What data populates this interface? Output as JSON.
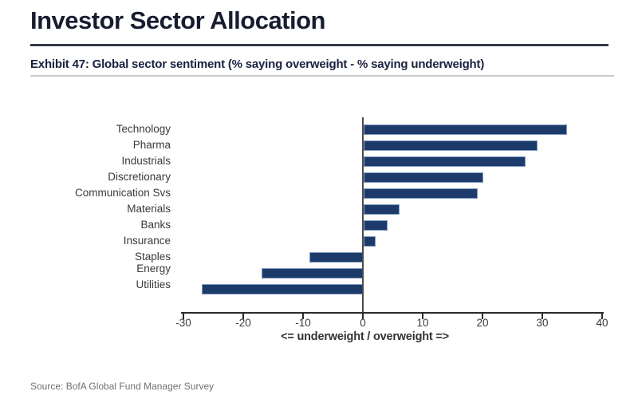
{
  "page": {
    "title": "Investor Sector Allocation",
    "exhibit_heading": "Exhibit 47: Global sector sentiment (% saying overweight - % saying underweight)",
    "source": "Source: BofA Global Fund Manager Survey"
  },
  "chart_data": {
    "type": "bar",
    "orientation": "horizontal",
    "title": "Exhibit 47: Global sector sentiment (% saying overweight - % saying underweight)",
    "categories": [
      "Technology",
      "Pharma",
      "Industrials",
      "Discretionary",
      "Communication Svs",
      "Materials",
      "Banks",
      "Insurance",
      "Staples",
      "Energy",
      "Utilities"
    ],
    "values": [
      34,
      29,
      27,
      20,
      19,
      6,
      4,
      2,
      -9,
      -17,
      -27
    ],
    "xlabel": "<= underweight / overweight =>",
    "ylabel": "",
    "xlim": [
      -30,
      40
    ],
    "xticks": [
      -30,
      -20,
      -10,
      0,
      10,
      20,
      30,
      40
    ],
    "grid": false,
    "legend": "none",
    "bar_color": "#1c3a6a"
  },
  "colors": {
    "title_text": "#171c2f",
    "bar_fill": "#1c3a6a",
    "axis_line": "#2b2b2b",
    "tick_text": "#3a3a3a",
    "source_text": "#707070"
  }
}
